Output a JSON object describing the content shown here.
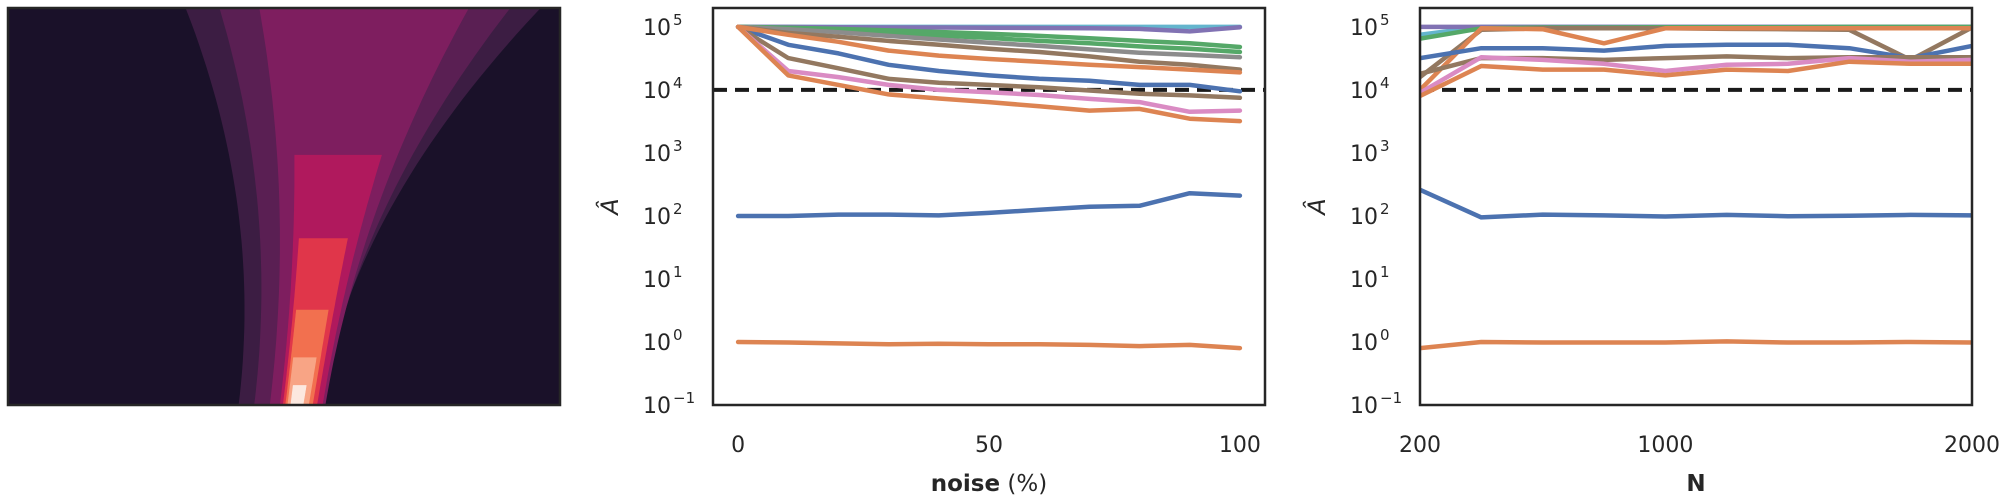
{
  "colors": {
    "contour_levels": [
      "#1a1129",
      "#3c1d43",
      "#5a1f53",
      "#7e1e5f",
      "#b0195d",
      "#e0364a",
      "#f2704f",
      "#f8a485",
      "#fce8df"
    ],
    "dashed_line": "#1a1a1a",
    "axes": "#262626",
    "series_palette": [
      "#4c72b0",
      "#dd8452",
      "#55a868",
      "#c44e52",
      "#8172b3",
      "#937860",
      "#da8bc3",
      "#8c8c8c",
      "#ccb974",
      "#64b5cd"
    ]
  },
  "chart_data": [
    {
      "type": "contour",
      "axes_visible": false,
      "x_range": [
        0,
        1
      ],
      "y_range": [
        0,
        1
      ],
      "levels": 9
    },
    {
      "type": "line",
      "x_label_bold": "noise",
      "x_label_rest": " (%)",
      "y_label": "Â",
      "y_scale": "log",
      "x_lim": [
        -5,
        105
      ],
      "y_lim_exp": [
        -1,
        5.3
      ],
      "x_ticks": [
        0,
        50,
        100
      ],
      "x_tick_labels": [
        "0",
        "50",
        "100"
      ],
      "y_ticks_exp": [
        -1,
        0,
        1,
        2,
        3,
        4,
        5
      ],
      "y_tick_labels": [
        "10",
        "10",
        "10",
        "10",
        "10",
        "10",
        "10"
      ],
      "y_tick_superscripts": [
        "−1",
        "0",
        "1",
        "2",
        "3",
        "4",
        "5"
      ],
      "reference_line": 10000,
      "x": [
        0,
        10,
        20,
        30,
        40,
        50,
        60,
        70,
        80,
        90,
        100
      ],
      "series": [
        {
          "color": "#64b5cd",
          "values": [
            100000,
            100000,
            100000,
            100000,
            100000,
            100000,
            100000,
            100000,
            100000,
            100000,
            100000
          ]
        },
        {
          "color": "#8172b3",
          "values": [
            100000,
            100000,
            99000,
            98000,
            98000,
            97000,
            96000,
            95000,
            93000,
            85000,
            99000
          ]
        },
        {
          "color": "#55a868",
          "values": [
            100000,
            97000,
            93000,
            88000,
            83000,
            78000,
            72000,
            66000,
            60000,
            55000,
            48000
          ]
        },
        {
          "color": "#55a868",
          "values": [
            100000,
            95000,
            88000,
            80000,
            73000,
            67000,
            60000,
            55000,
            49000,
            45000,
            40000
          ]
        },
        {
          "color": "#8c8c8c",
          "values": [
            100000,
            92000,
            82000,
            72000,
            63000,
            56000,
            50000,
            44000,
            39000,
            36000,
            33000
          ]
        },
        {
          "color": "#4c72b0",
          "values": [
            100000,
            52000,
            38000,
            25000,
            20000,
            17000,
            15000,
            14000,
            12000,
            12000,
            9500
          ]
        },
        {
          "color": "#937860",
          "values": [
            100000,
            32000,
            22000,
            15000,
            13000,
            12000,
            11000,
            9800,
            8700,
            8200,
            7500
          ]
        },
        {
          "color": "#da8bc3",
          "values": [
            100000,
            20000,
            16000,
            12000,
            10000,
            9200,
            8300,
            7200,
            6400,
            4500,
            4700
          ]
        },
        {
          "color": "#dd8452",
          "values": [
            100000,
            17000,
            12000,
            8500,
            7300,
            6400,
            5500,
            4700,
            5000,
            3500,
            3200
          ]
        },
        {
          "color": "#937860",
          "values": [
            100000,
            80000,
            70000,
            60000,
            52000,
            45000,
            40000,
            34000,
            28000,
            25000,
            21000
          ]
        },
        {
          "color": "#dd8452",
          "values": [
            100000,
            75000,
            58000,
            42000,
            35000,
            31000,
            28000,
            25000,
            23000,
            21000,
            19000
          ]
        },
        {
          "color": "#4c72b0",
          "values": [
            100,
            100,
            105,
            105,
            102,
            112,
            125,
            140,
            145,
            230,
            210
          ]
        },
        {
          "color": "#dd8452",
          "values": [
            1.0,
            0.98,
            0.95,
            0.92,
            0.94,
            0.92,
            0.92,
            0.9,
            0.86,
            0.9,
            0.8
          ]
        }
      ]
    },
    {
      "type": "line",
      "x_label_bold": "N",
      "x_label_rest": "",
      "y_label": "Â",
      "y_scale": "log",
      "x_lim": [
        200,
        2000
      ],
      "y_lim_exp": [
        -1,
        5.3
      ],
      "x_ticks": [
        200,
        1000,
        2000
      ],
      "x_tick_labels": [
        "200",
        "1000",
        "2000"
      ],
      "y_ticks_exp": [
        -1,
        0,
        1,
        2,
        3,
        4,
        5
      ],
      "y_tick_labels": [
        "10",
        "10",
        "10",
        "10",
        "10",
        "10",
        "10"
      ],
      "y_tick_superscripts": [
        "−1",
        "0",
        "1",
        "2",
        "3",
        "4",
        "5"
      ],
      "reference_line": 10000,
      "x": [
        200,
        400,
        600,
        800,
        1000,
        1200,
        1400,
        1600,
        1800,
        2000
      ],
      "series": [
        {
          "color": "#64b5cd",
          "values": [
            75000,
            100000,
            100000,
            100000,
            100000,
            100000,
            100000,
            100000,
            100000,
            100000
          ]
        },
        {
          "color": "#8172b3",
          "values": [
            100000,
            100000,
            100000,
            100000,
            100000,
            100000,
            100000,
            100000,
            100000,
            100000
          ]
        },
        {
          "color": "#55a868",
          "values": [
            65000,
            95000,
            98000,
            98000,
            99000,
            99000,
            99000,
            100000,
            100000,
            100000
          ]
        },
        {
          "color": "#937860",
          "values": [
            16000,
            90000,
            95000,
            95000,
            95000,
            93000,
            92000,
            90000,
            30000,
            98000
          ]
        },
        {
          "color": "#dd8452",
          "values": [
            10000,
            95000,
            92000,
            55000,
            95000,
            95000,
            95000,
            95000,
            95000,
            95000
          ]
        },
        {
          "color": "#4c72b0",
          "values": [
            32000,
            46000,
            46000,
            42000,
            50000,
            52000,
            52000,
            46000,
            32000,
            50000
          ]
        },
        {
          "color": "#937860",
          "values": [
            18000,
            32000,
            32000,
            30000,
            32000,
            34000,
            32000,
            33000,
            33000,
            33000
          ]
        },
        {
          "color": "#da8bc3",
          "values": [
            9000,
            33000,
            30000,
            26000,
            20000,
            25000,
            26000,
            32000,
            28000,
            30000
          ]
        },
        {
          "color": "#dd8452",
          "values": [
            8000,
            24000,
            21000,
            21000,
            17000,
            21000,
            20000,
            28000,
            26000,
            26000
          ]
        },
        {
          "color": "#4c72b0",
          "values": [
            260,
            95,
            105,
            102,
            98,
            104,
            99,
            101,
            104,
            102
          ]
        },
        {
          "color": "#dd8452",
          "values": [
            0.8,
            1.0,
            0.98,
            0.98,
            0.98,
            1.02,
            0.98,
            0.98,
            1.0,
            0.98
          ]
        }
      ]
    }
  ]
}
